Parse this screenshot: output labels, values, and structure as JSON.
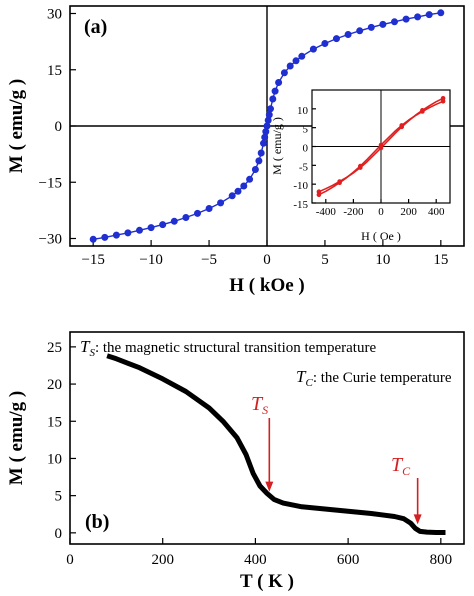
{
  "chart_data": [
    {
      "panel": "(a)",
      "type": "line",
      "xlabel": "H ( kOe )",
      "ylabel": "M ( emu/g )",
      "xlim": [
        -17,
        17
      ],
      "ylim": [
        -32,
        32
      ],
      "xticks": [
        -15,
        -10,
        -5,
        0,
        5,
        10,
        15
      ],
      "yticks": [
        -30,
        -15,
        0,
        15,
        30
      ],
      "color": "#1f2fd0",
      "series": [
        {
          "values_x": [
            -15,
            -14,
            -13,
            -12,
            -11,
            -10,
            -9,
            -8,
            -7,
            -6,
            -5,
            -4,
            -3,
            -2.5,
            -2,
            -1.5,
            -1,
            -0.7,
            -0.5,
            -0.3,
            -0.2,
            -0.1,
            0,
            0.1,
            0.2,
            0.3,
            0.5,
            0.7,
            1,
            1.5,
            2,
            2.5,
            3,
            4,
            5,
            6,
            7,
            8,
            9,
            10,
            11,
            12,
            13,
            14,
            15
          ],
          "values_y": [
            -30.2,
            -29.7,
            -29.1,
            -28.5,
            -27.8,
            -27.1,
            -26.3,
            -25.4,
            -24.4,
            -23.3,
            -22.0,
            -20.5,
            -18.6,
            -17.4,
            -16.0,
            -14.2,
            -11.6,
            -9.3,
            -7.2,
            -4.6,
            -3.0,
            -1.5,
            0,
            1.5,
            3.0,
            4.6,
            7.2,
            9.3,
            11.6,
            14.2,
            16.0,
            17.4,
            18.6,
            20.5,
            22.0,
            23.3,
            24.4,
            25.4,
            26.3,
            27.1,
            27.8,
            28.5,
            29.1,
            29.7,
            30.2
          ]
        }
      ],
      "inset": {
        "type": "line",
        "xlabel": "H ( Oe )",
        "ylabel": "M ( emu/g )",
        "xlim": [
          -500,
          500
        ],
        "ylim": [
          -15,
          15
        ],
        "xticks": [
          -400,
          -200,
          0,
          200,
          400
        ],
        "yticks": [
          -15,
          -10,
          -5,
          0,
          5,
          10
        ],
        "color": "#e02020",
        "series": [
          {
            "values_x": [
              -450,
              -400,
              -350,
              -300,
              -250,
              -200,
              -150,
              -100,
              -50,
              0,
              50,
              100,
              150,
              200,
              250,
              300,
              350,
              400,
              450
            ],
            "values_y": [
              -12.0,
              -11.2,
              -10.3,
              -9.3,
              -8.2,
              -7.0,
              -5.6,
              -4.0,
              -2.2,
              -0.4,
              1.5,
              3.4,
              5.2,
              6.8,
              8.3,
              9.6,
              10.8,
              11.9,
              12.8
            ]
          },
          {
            "values_x": [
              -450,
              -400,
              -350,
              -300,
              -250,
              -200,
              -150,
              -100,
              -50,
              0,
              50,
              100,
              150,
              200,
              250,
              300,
              350,
              400,
              450
            ],
            "values_y": [
              -12.8,
              -11.9,
              -10.8,
              -9.6,
              -8.3,
              -6.8,
              -5.2,
              -3.4,
              -1.5,
              0.4,
              2.2,
              4.0,
              5.6,
              7.0,
              8.2,
              9.3,
              10.3,
              11.2,
              12.0
            ]
          }
        ]
      }
    },
    {
      "panel": "(b)",
      "type": "line",
      "xlabel": "T ( K )",
      "ylabel": "M ( emu/g )",
      "xlim": [
        0,
        850
      ],
      "ylim": [
        -1.5,
        27
      ],
      "xticks": [
        0,
        200,
        400,
        600,
        800
      ],
      "yticks": [
        0,
        5,
        10,
        15,
        20,
        25
      ],
      "color": "#000000",
      "series": [
        {
          "values_x": [
            80,
            100,
            150,
            200,
            250,
            300,
            330,
            360,
            380,
            395,
            410,
            425,
            440,
            460,
            500,
            550,
            600,
            650,
            700,
            720,
            735,
            745,
            755,
            770,
            790,
            810
          ],
          "values_y": [
            23.8,
            23.4,
            22.2,
            20.7,
            19.0,
            16.8,
            15.0,
            12.8,
            10.5,
            8.0,
            6.3,
            5.3,
            4.5,
            4.0,
            3.5,
            3.2,
            2.9,
            2.6,
            2.2,
            1.9,
            1.3,
            0.6,
            0.2,
            0.1,
            0.05,
            0.05
          ]
        }
      ],
      "annotations": {
        "ts_symbol": "T",
        "ts_sub": "S",
        "ts_desc": ": the magnetic structural transition temperature",
        "tc_symbol": "T",
        "tc_sub": "C",
        "tc_desc": ": the Curie temperature",
        "ts_arrow_t": 430,
        "ts_arrow_m": 5.0,
        "tc_arrow_t": 750,
        "tc_arrow_m": 0.6,
        "arrow_color": "#d42020"
      }
    }
  ]
}
